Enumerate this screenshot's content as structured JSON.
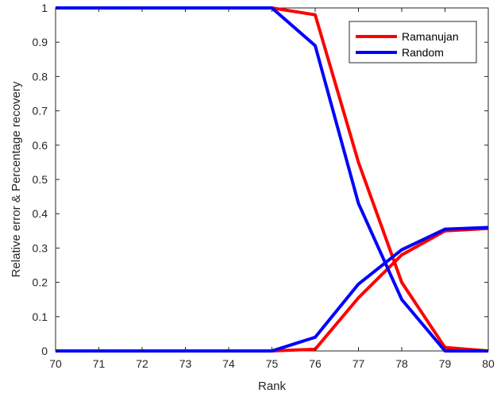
{
  "chart_data": {
    "type": "line",
    "title": "",
    "xlabel": "Rank",
    "ylabel": "Relative error & Percentage recovery",
    "xlim": [
      70,
      80
    ],
    "ylim": [
      0,
      1
    ],
    "x_ticks": [
      "70",
      "71",
      "72",
      "73",
      "74",
      "75",
      "76",
      "77",
      "78",
      "79",
      "80"
    ],
    "y_ticks": [
      "0",
      "0.1",
      "0.2",
      "0.3",
      "0.4",
      "0.5",
      "0.6",
      "0.7",
      "0.8",
      "0.9",
      "1"
    ],
    "grid": false,
    "legend_position": "top-right",
    "x": [
      70,
      71,
      72,
      73,
      74,
      75,
      76,
      77,
      78,
      79,
      80
    ],
    "series": [
      {
        "name": "Ramanujan",
        "color": "#ff0000",
        "curves": [
          [
            1,
            1,
            1,
            1,
            1,
            1,
            0.98,
            0.55,
            0.2,
            0.01,
            0
          ],
          [
            0,
            0,
            0,
            0,
            0,
            0,
            0.005,
            0.155,
            0.28,
            0.35,
            0.357
          ]
        ]
      },
      {
        "name": "Random",
        "color": "#0000ff",
        "curves": [
          [
            1,
            1,
            1,
            1,
            1,
            1,
            0.89,
            0.43,
            0.15,
            0,
            0
          ],
          [
            0,
            0,
            0,
            0,
            0,
            0,
            0.04,
            0.195,
            0.295,
            0.355,
            0.36
          ]
        ]
      }
    ]
  }
}
